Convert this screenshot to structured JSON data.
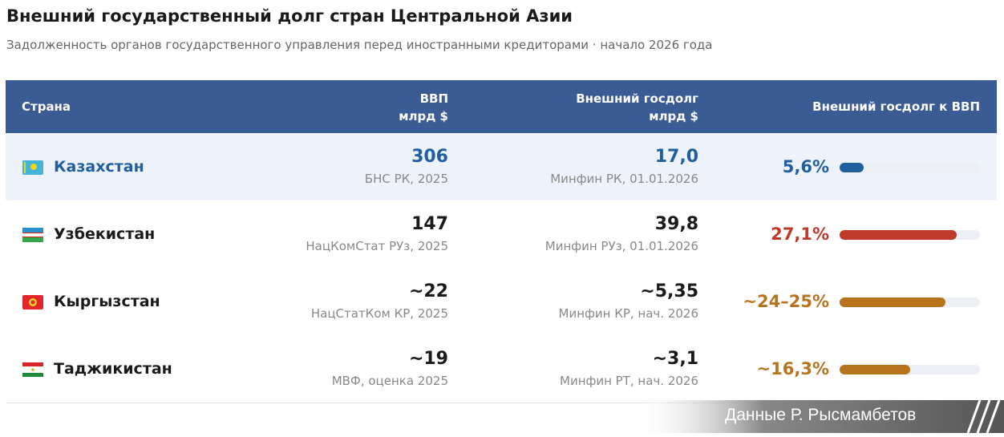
{
  "header": {
    "title": "Внешний государственный долг стран Центральной Азии",
    "subtitle": "Задолженность органов государственного управления перед иностранными кредиторами · начало 2026 года"
  },
  "table": {
    "columns": [
      {
        "label": "Страна"
      },
      {
        "label": "ВВП",
        "unit": "млрд $"
      },
      {
        "label": "Внешний госдолг",
        "unit": "млрд $"
      },
      {
        "label": "Внешний госдолг к ВВП"
      }
    ],
    "rows": [
      {
        "country": "Казахстан",
        "gdp": "306",
        "gdp_source": "БНС РК, 2025",
        "debt": "17,0",
        "debt_source": "Минфин РК, 01.01.2026",
        "ratio": 5.6,
        "ratio_label": "5,6%",
        "color": "#1f5f9f",
        "highlight": true
      },
      {
        "country": "Узбекистан",
        "gdp": "147",
        "gdp_source": "НацКомСтат РУз, 2025",
        "debt": "39,8",
        "debt_source": "Минфин РУз, 01.01.2026",
        "ratio": 27.1,
        "ratio_label": "27,1%",
        "color": "#c0392b",
        "highlight": false
      },
      {
        "country": "Кыргызстан",
        "gdp": "~22",
        "gdp_source": "НацСтатКом КР, 2025",
        "debt": "~5,35",
        "debt_source": "Минфин КР, нач. 2026",
        "ratio": 24.5,
        "ratio_label": "~24–25%",
        "color": "#b8731c",
        "highlight": false
      },
      {
        "country": "Таджикистан",
        "gdp": "~19",
        "gdp_source": "МВФ, оценка 2025",
        "debt": "~3,1",
        "debt_source": "Минфин РТ, нач. 2026",
        "ratio": 16.3,
        "ratio_label": "~16,3%",
        "color": "#b8731c",
        "highlight": false
      }
    ]
  },
  "footer": {
    "credit": "Данные Р. Рысмамбетов"
  }
}
